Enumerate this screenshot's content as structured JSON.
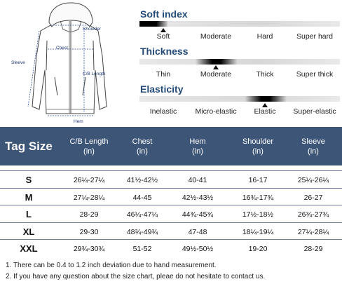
{
  "diagram": {
    "labels": {
      "sleeve": "Sleeve",
      "shoulder": "Shoulder",
      "chest": "Chest",
      "cb_length": "C/B Length",
      "hem": "Hem"
    }
  },
  "features": [
    {
      "title": "Soft index",
      "options": [
        "Soft",
        "Moderate",
        "Hard",
        "Super hard"
      ],
      "selected_index": 0
    },
    {
      "title": "Thickness",
      "options": [
        "Thin",
        "Moderate",
        "Thick",
        "Super thick"
      ],
      "selected_index": 1
    },
    {
      "title": "Elasticity",
      "options": [
        "Inelastic",
        "Micro-elastic",
        "Elastic",
        "Super-elastic"
      ],
      "selected_index": 2
    }
  ],
  "table": {
    "headers": [
      {
        "line1": "Tag Size",
        "line2": ""
      },
      {
        "line1": "C/B Length",
        "line2": "(in)"
      },
      {
        "line1": "Chest",
        "line2": "(in)"
      },
      {
        "line1": "Hem",
        "line2": "(in)"
      },
      {
        "line1": "Shoulder",
        "line2": "(in)"
      },
      {
        "line1": "Sleeve",
        "line2": "(in)"
      }
    ],
    "rows": [
      [
        "S",
        "26¼-27¼",
        "41½-42½",
        "40-41",
        "16-17",
        "25¼-26¼"
      ],
      [
        "M",
        "27¼-28¼",
        "44-45",
        "42½-43½",
        "16¾-17¾",
        "26-27"
      ],
      [
        "L",
        "28-29",
        "46¼-47¼",
        "44¾-45¾",
        "17½-18½",
        "26¾-27¾"
      ],
      [
        "XL",
        "29-30",
        "48¾-49¾",
        "47-48",
        "18¼-19¼",
        "27¼-28¼"
      ],
      [
        "XXL",
        "29¾-30¾",
        "51-52",
        "49½-50½",
        "19-20",
        "28-29"
      ]
    ]
  },
  "notes": [
    "1. There can be 0.4 to 1.2 inch deviation due to hand measurement.",
    "2. If you have any question about the size chart, pleae do not hesitate to contact us."
  ]
}
